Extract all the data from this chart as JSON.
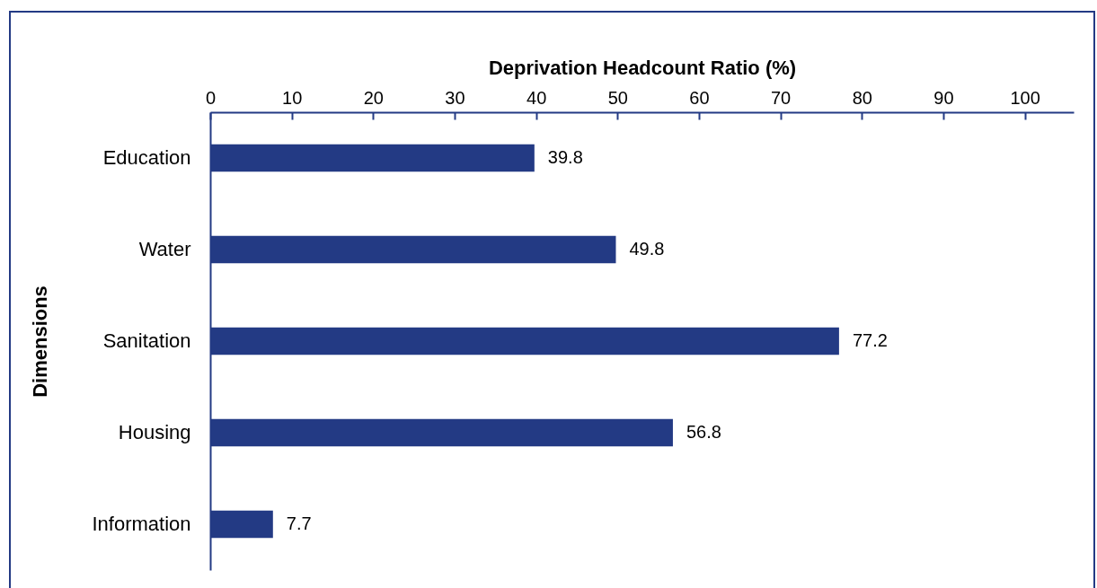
{
  "chart_data": {
    "type": "bar",
    "orientation": "horizontal",
    "xlabel": "Deprivation Headcount Ratio (%)",
    "ylabel": "Dimensions",
    "categories": [
      "Education",
      "Water",
      "Sanitation",
      "Housing",
      "Information"
    ],
    "values": [
      39.8,
      49.8,
      77.2,
      56.8,
      7.7
    ],
    "color": "#233a84",
    "xlim": [
      0,
      106
    ],
    "xticks": [
      0,
      10,
      20,
      30,
      40,
      50,
      60,
      70,
      80,
      90,
      100
    ],
    "grid": false,
    "data_labels": true
  }
}
